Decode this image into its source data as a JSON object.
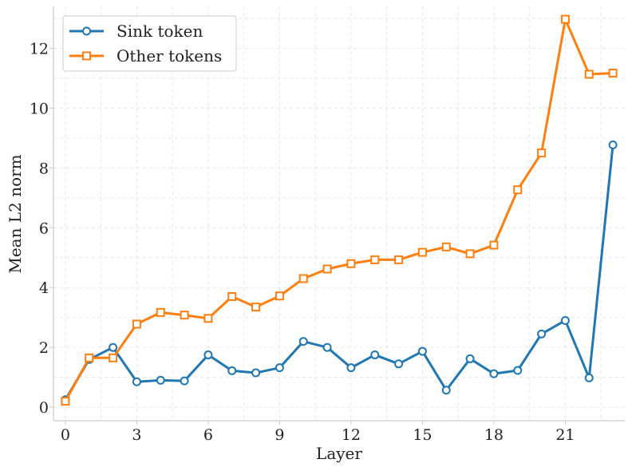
{
  "chart_data": {
    "type": "line",
    "xlabel": "Layer",
    "ylabel": "Mean L2 norm",
    "xlim": [
      -0.5,
      23.5
    ],
    "ylim": [
      -0.45,
      13.4
    ],
    "xticks": [
      0,
      3,
      6,
      9,
      12,
      15,
      18,
      21
    ],
    "yticks": [
      0,
      2,
      4,
      6,
      8,
      10,
      12
    ],
    "grid": true,
    "legend_position": "top-left",
    "x": [
      0,
      1,
      2,
      3,
      4,
      5,
      6,
      7,
      8,
      9,
      10,
      11,
      12,
      13,
      14,
      15,
      16,
      17,
      18,
      19,
      20,
      21,
      22,
      23
    ],
    "series": [
      {
        "name": "Sink token",
        "color": "#1f77b4",
        "marker": "circle",
        "values": [
          0.25,
          1.6,
          2.0,
          0.85,
          0.9,
          0.88,
          1.75,
          1.22,
          1.15,
          1.32,
          2.2,
          2.0,
          1.32,
          1.75,
          1.45,
          1.87,
          0.57,
          1.62,
          1.12,
          1.23,
          2.45,
          2.9,
          0.98,
          8.77
        ]
      },
      {
        "name": "Other tokens",
        "color": "#ff7f0e",
        "marker": "square",
        "values": [
          0.2,
          1.65,
          1.65,
          2.78,
          3.17,
          3.08,
          2.97,
          3.7,
          3.35,
          3.72,
          4.3,
          4.62,
          4.8,
          4.93,
          4.93,
          5.18,
          5.36,
          5.13,
          5.42,
          7.27,
          8.5,
          12.97,
          11.13,
          11.17
        ]
      }
    ]
  }
}
